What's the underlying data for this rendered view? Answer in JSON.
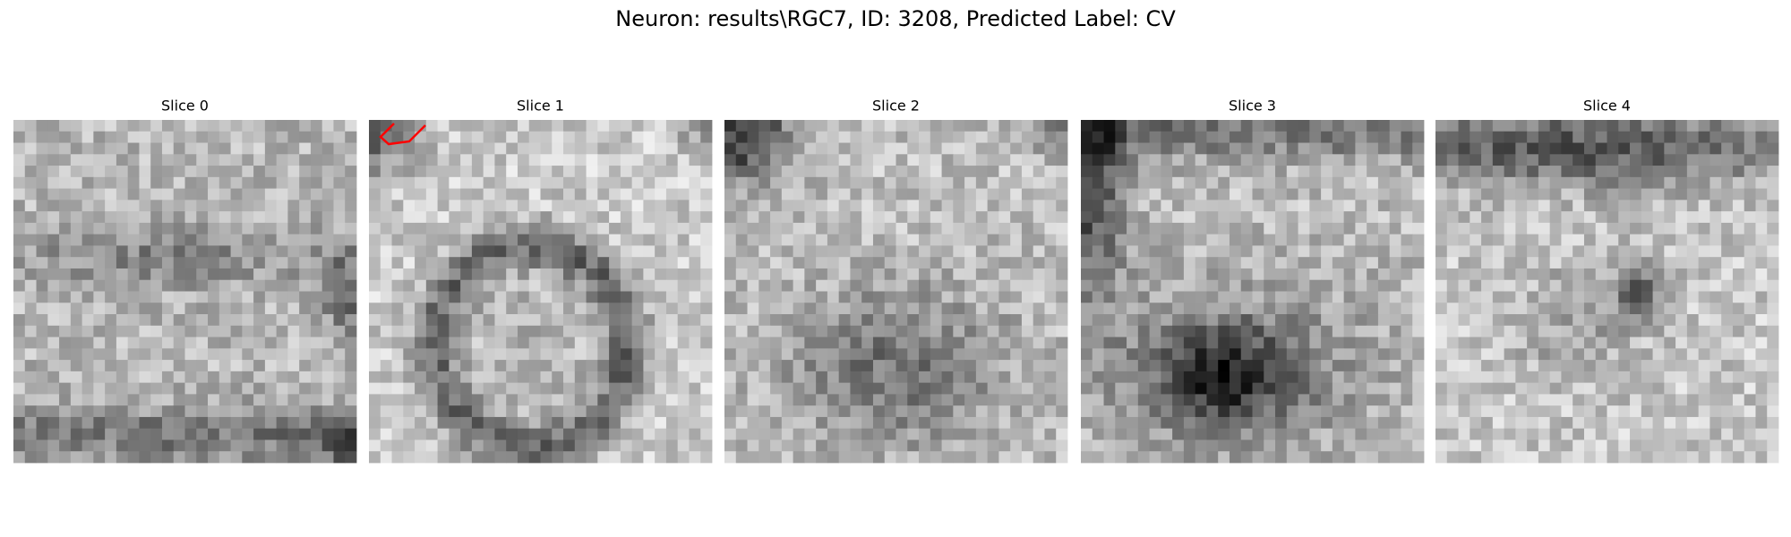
{
  "title": "Neuron: results\\RGC7, ID: 3208, Predicted Label: CV",
  "panels": [
    {
      "label": "Slice 0"
    },
    {
      "label": "Slice 1"
    },
    {
      "label": "Slice 2"
    },
    {
      "label": "Slice 3"
    },
    {
      "label": "Slice 4"
    }
  ]
}
